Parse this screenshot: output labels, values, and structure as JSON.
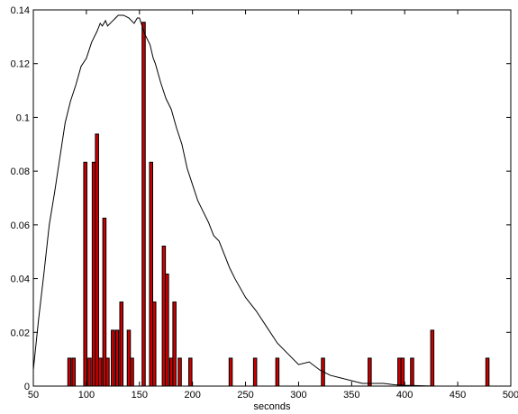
{
  "chart_data": {
    "type": "bar",
    "title": "",
    "xlabel": "seconds",
    "ylabel": "",
    "xlim": [
      50,
      500
    ],
    "ylim": [
      0,
      0.14
    ],
    "xticks": [
      50,
      100,
      150,
      200,
      250,
      300,
      350,
      400,
      450,
      500
    ],
    "yticks": [
      0,
      0.02,
      0.04,
      0.06,
      0.08,
      0.1,
      0.12,
      0.14
    ],
    "xtick_labels": [
      "50",
      "100",
      "150",
      "200",
      "250",
      "300",
      "350",
      "400",
      "450",
      "500"
    ],
    "ytick_labels": [
      "0",
      "0.02",
      "0.04",
      "0.06",
      "0.08",
      "0.1",
      "0.12",
      "0.14"
    ],
    "grid": false,
    "bar_color": "#cc0000",
    "line_color": "#000000",
    "bar_width": 3,
    "bars": {
      "x": [
        84,
        88,
        99,
        103,
        107,
        110,
        113,
        117,
        120,
        125,
        129,
        133,
        140,
        143,
        154,
        161,
        164,
        173,
        176,
        180,
        183,
        188,
        198,
        236,
        259,
        280,
        323,
        367,
        395,
        398,
        407,
        426,
        478
      ],
      "values": [
        0.0104,
        0.0104,
        0.0833,
        0.0104,
        0.0833,
        0.0938,
        0.0104,
        0.0625,
        0.0104,
        0.0208,
        0.0208,
        0.0313,
        0.0208,
        0.0104,
        0.1354,
        0.0833,
        0.0313,
        0.0521,
        0.0417,
        0.0104,
        0.0313,
        0.0104,
        0.0104,
        0.0104,
        0.0104,
        0.0104,
        0.0104,
        0.0104,
        0.0104,
        0.0104,
        0.0104,
        0.0208,
        0.0104
      ]
    },
    "series": [
      {
        "x": [
          50,
          55,
          60,
          65,
          70,
          75,
          80,
          85,
          90,
          95,
          100,
          105,
          110,
          113,
          115,
          118,
          120,
          125,
          130,
          135,
          140,
          145,
          148,
          150,
          155,
          160,
          163,
          165,
          170,
          175,
          180,
          185,
          190,
          195,
          200,
          205,
          210,
          215,
          220,
          225,
          230,
          235,
          240,
          250,
          260,
          270,
          280,
          290,
          300,
          310,
          320,
          330,
          340,
          350,
          360,
          370,
          380,
          390,
          400,
          410,
          420,
          430,
          440
        ],
        "y": [
          0.006,
          0.025,
          0.042,
          0.06,
          0.072,
          0.085,
          0.098,
          0.106,
          0.112,
          0.119,
          0.122,
          0.128,
          0.132,
          0.135,
          0.134,
          0.136,
          0.134,
          0.136,
          0.138,
          0.138,
          0.137,
          0.135,
          0.137,
          0.137,
          0.131,
          0.127,
          0.122,
          0.12,
          0.113,
          0.107,
          0.103,
          0.096,
          0.09,
          0.081,
          0.075,
          0.069,
          0.065,
          0.061,
          0.056,
          0.054,
          0.049,
          0.044,
          0.04,
          0.033,
          0.028,
          0.022,
          0.016,
          0.012,
          0.008,
          0.009,
          0.006,
          0.004,
          0.003,
          0.002,
          0.001,
          0.001,
          0.001,
          0.0005,
          0.0003,
          0.0002,
          0.0001,
          0,
          0
        ]
      }
    ]
  }
}
